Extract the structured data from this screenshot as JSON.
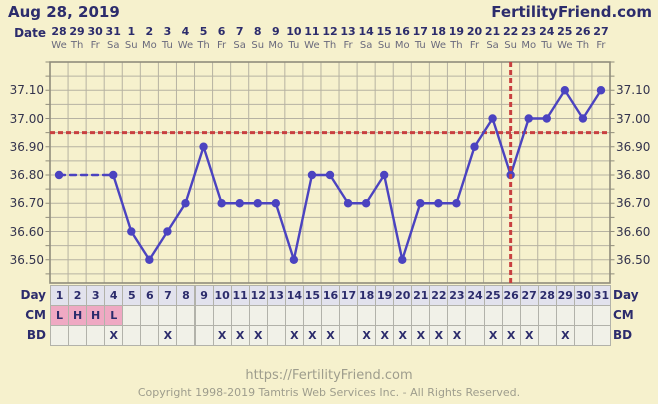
{
  "header": {
    "title": "Aug 28, 2019",
    "brand": "FertilityFriend.com"
  },
  "axis": {
    "date_label": "Date",
    "dates": [
      28,
      29,
      30,
      31,
      1,
      2,
      3,
      4,
      5,
      6,
      7,
      8,
      9,
      10,
      11,
      12,
      13,
      14,
      15,
      16,
      17,
      18,
      19,
      20,
      21,
      22,
      23,
      24,
      25,
      26,
      27
    ],
    "weekdays": [
      "We",
      "Th",
      "Fr",
      "Sa",
      "Su",
      "Mo",
      "Tu",
      "We",
      "Th",
      "Fr",
      "Sa",
      "Su",
      "Mo",
      "Tu",
      "We",
      "Th",
      "Fr",
      "Sa",
      "Su",
      "Mo",
      "Tu",
      "We",
      "Th",
      "Fr",
      "Sa",
      "Su",
      "Mo",
      "Tu",
      "We",
      "Th",
      "Fr"
    ]
  },
  "chart_data": {
    "type": "line",
    "x_days": [
      1,
      2,
      3,
      4,
      5,
      6,
      7,
      8,
      9,
      10,
      11,
      12,
      13,
      14,
      15,
      16,
      17,
      18,
      19,
      20,
      21,
      22,
      23,
      24,
      25,
      26,
      27,
      28,
      29,
      30,
      31
    ],
    "series": [
      {
        "name": "temperature",
        "values": [
          36.8,
          null,
          null,
          36.8,
          36.6,
          36.5,
          36.6,
          36.7,
          36.9,
          36.7,
          36.7,
          36.7,
          36.7,
          36.5,
          36.8,
          36.8,
          36.7,
          36.7,
          36.8,
          36.5,
          36.7,
          36.7,
          36.7,
          36.9,
          37.0,
          36.8,
          37.0,
          37.0,
          37.1,
          37.0,
          37.1
        ]
      }
    ],
    "coverline": 36.95,
    "ovulation_line_day": 26,
    "ylim": [
      36.42,
      37.2
    ],
    "ytick_step": 0.05,
    "ylabel_ticks": [
      "37.10",
      "37.00",
      "36.90",
      "36.80",
      "36.70",
      "36.60",
      "36.50"
    ],
    "grid": true,
    "line_color": "#4b43c0",
    "coverline_color": "#c84040"
  },
  "table": {
    "rows": [
      {
        "label": "Day",
        "kind": "day",
        "values": [
          "1",
          "2",
          "3",
          "4",
          "5",
          "6",
          "7",
          "8",
          "9",
          "10",
          "11",
          "12",
          "13",
          "14",
          "15",
          "16",
          "17",
          "18",
          "19",
          "20",
          "21",
          "22",
          "23",
          "24",
          "25",
          "26",
          "27",
          "28",
          "29",
          "30",
          "31"
        ]
      },
      {
        "label": "CM",
        "kind": "cm",
        "values": [
          "L",
          "H",
          "H",
          "L",
          "",
          "",
          "",
          "",
          "",
          "",
          "",
          "",
          "",
          "",
          "",
          "",
          "",
          "",
          "",
          "",
          "",
          "",
          "",
          "",
          "",
          "",
          "",
          "",
          "",
          "",
          ""
        ]
      },
      {
        "label": "BD",
        "kind": "bd",
        "values": [
          "",
          "",
          "",
          "X",
          "",
          "",
          "X",
          "",
          "",
          "X",
          "X",
          "X",
          "",
          "X",
          "X",
          "X",
          "",
          "X",
          "X",
          "X",
          "X",
          "X",
          "X",
          "",
          "X",
          "X",
          "X",
          "",
          "X",
          "",
          ""
        ]
      }
    ]
  },
  "footer": {
    "url": "https://FertilityFriend.com",
    "copyright": "Copyright 1998-2019 Tamtris Web Services Inc. - All Rights Reserved."
  }
}
